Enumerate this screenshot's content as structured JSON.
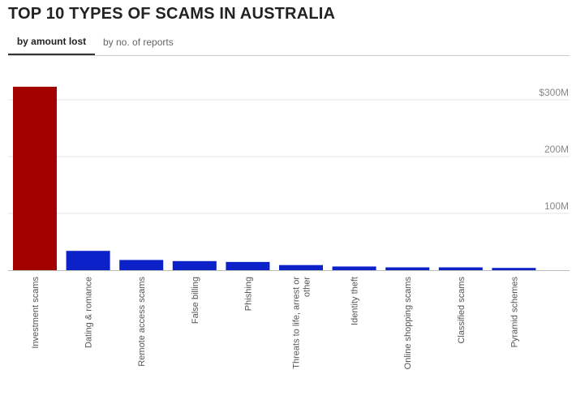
{
  "title": "TOP 10 TYPES OF SCAMS IN AUSTRALIA",
  "tabs": [
    {
      "label": "by amount lost",
      "active": true
    },
    {
      "label": "by no. of reports",
      "active": false
    }
  ],
  "chart_data": {
    "type": "bar",
    "categories": [
      "Investment scams",
      "Dating & romance",
      "Remote access scams",
      "False billing",
      "Phishing",
      "Threats to life, arrest or other",
      "Identity theft",
      "Online shopping scams",
      "Classified scams",
      "Pyramid schemes"
    ],
    "values": [
      323,
      34,
      18,
      16,
      14.5,
      9,
      6.5,
      5,
      5,
      4
    ],
    "unit": "$M",
    "yticks": [
      100,
      200,
      300
    ],
    "ytick_labels": [
      "100M",
      "200M",
      "$300M"
    ],
    "ylim": [
      0,
      330
    ],
    "colors": {
      "highlight": "#a30000",
      "default": "#0d21c9",
      "grid": "#e6e6e6",
      "axis": "#bbbbbb"
    },
    "highlight_index": 0,
    "grid": true
  }
}
